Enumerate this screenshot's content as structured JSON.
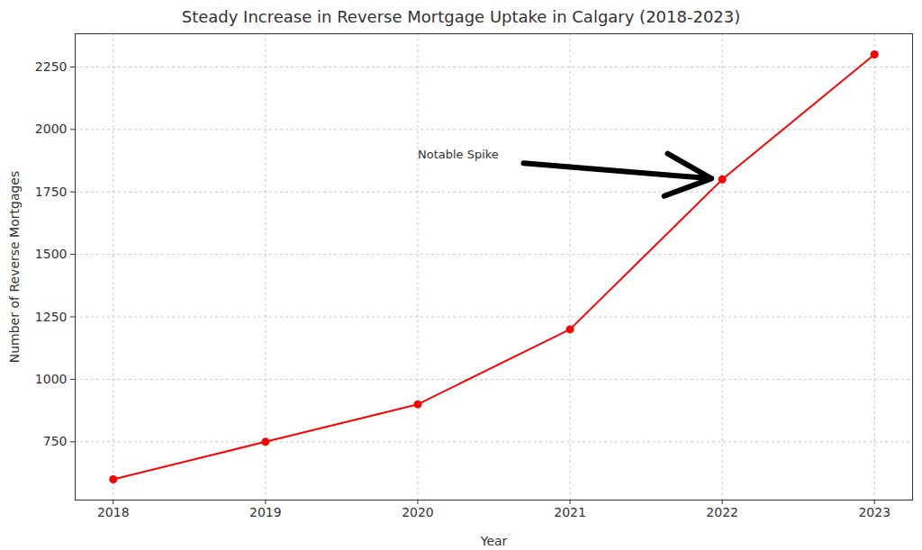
{
  "chart_data": {
    "type": "line",
    "title": "Steady Increase in Reverse Mortgage Uptake in Calgary (2018-2023)",
    "x_label": "Year",
    "y_label": "Number of Reverse Mortgages",
    "x": [
      2018,
      2019,
      2020,
      2021,
      2022,
      2023
    ],
    "values": [
      600,
      750,
      900,
      1200,
      1800,
      2300
    ],
    "color": "red",
    "marker": "circle",
    "line_style": "solid",
    "xlim": [
      2017.75,
      2023.25
    ],
    "xticks": [
      2018,
      2019,
      2020,
      2021,
      2022,
      2023
    ],
    "ylim": [
      517,
      2383
    ],
    "yticks": [
      750,
      1000,
      1250,
      1500,
      1750,
      2000,
      2250
    ],
    "grid": true,
    "annotations": [
      {
        "text": "Notable Spike",
        "x": 2022,
        "y": 1800,
        "text_x": 2020,
        "text_y": 1900
      }
    ]
  }
}
